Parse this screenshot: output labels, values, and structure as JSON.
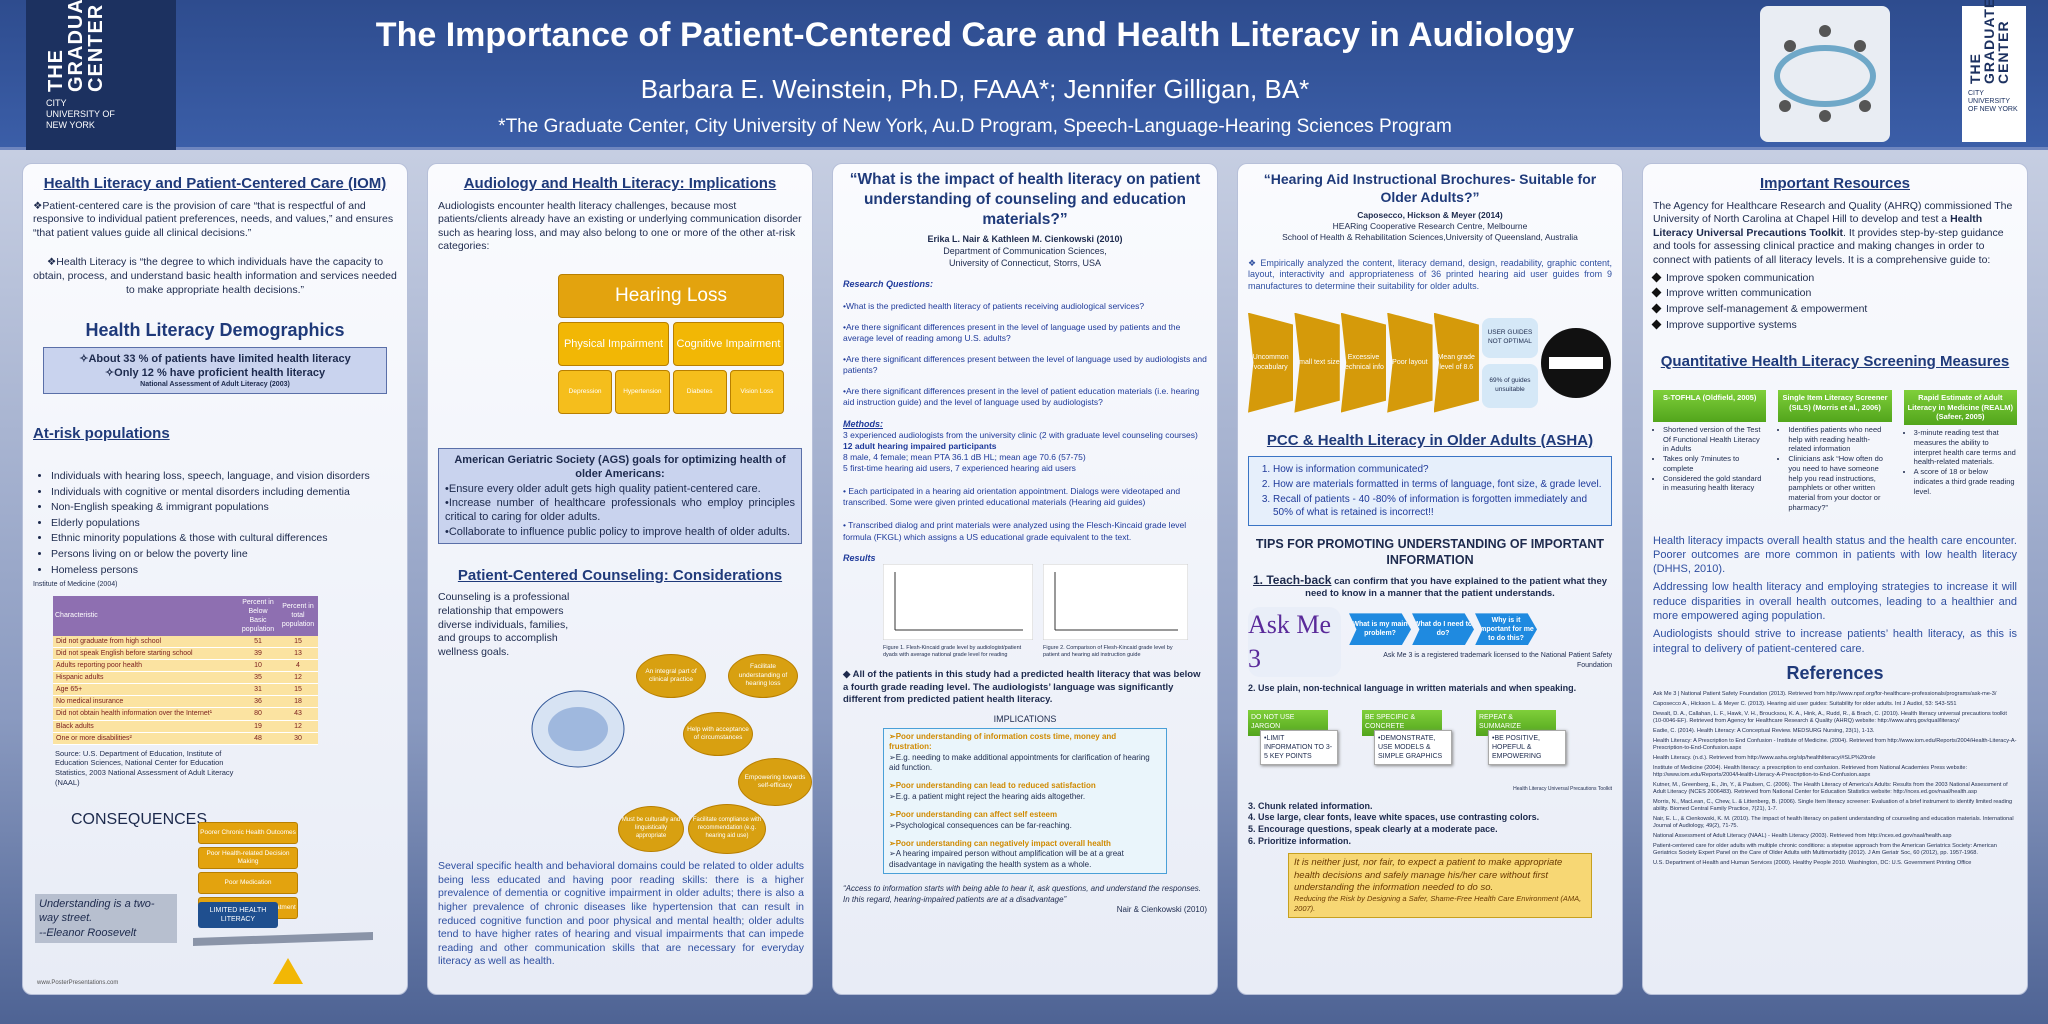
{
  "header": {
    "logo_left": [
      "THE GRADUATE CENTER",
      "CITY UNIVERSITY OF NEW YORK"
    ],
    "logo_right": [
      "THE GRADUATE CENTER",
      "CITY UNIVERSITY OF NEW YORK"
    ],
    "title": "The Importance of Patient-Centered Care and Health Literacy in Audiology",
    "authors": "Barbara E. Weinstein, Ph.D, FAAA*; Jennifer Gilligan, BA*",
    "affiliation": "*The Graduate Center, City University of New York,  Au.D Program, Speech-Language-Hearing Sciences Program"
  },
  "col1": {
    "heading1": "Health Literacy and Patient-Centered Care (IOM)",
    "p1": "❖Patient-centered care is the provision of care “that is respectful of and responsive to individual patient preferences, needs, and values,” and ensures “that patient values guide all clinical decisions.”",
    "p2": "❖Health Literacy is “the degree to which individuals have the capacity to obtain, process, and understand basic health information and services needed to make appropriate health decisions.”",
    "heading2": "Health Literacy Demographics",
    "stats": [
      "✧About 33 % of patients have limited health literacy",
      "✧Only 12 % have proficient health literacy"
    ],
    "stats_source": "National Assessment of Adult Literacy (2003)",
    "heading3": "At-risk populations",
    "at_risk": [
      "Individuals with hearing loss, speech, language, and vision disorders",
      "Individuals with cognitive or mental disorders including dementia",
      "Non-English speaking & immigrant populations",
      "Elderly populations",
      "Ethnic minority populations & those with cultural differences",
      "Persons living on or below the poverty line",
      "Homeless persons"
    ],
    "at_risk_source": "Institute of Medicine (2004)",
    "table": {
      "header": [
        "Characteristic",
        "Percent in Below Basic population",
        "Percent in total population"
      ],
      "rows": [
        [
          "Did not graduate from high school",
          "51",
          "15"
        ],
        [
          "Did not speak English before starting school",
          "39",
          "13"
        ],
        [
          "Adults reporting poor health",
          "10",
          "4"
        ],
        [
          "Hispanic adults",
          "35",
          "12"
        ],
        [
          "Age 65+",
          "31",
          "15"
        ],
        [
          "No medical insurance",
          "36",
          "18"
        ],
        [
          "Did not obtain health information over the Internet¹",
          "80",
          "43"
        ],
        [
          "Black adults",
          "19",
          "12"
        ],
        [
          "One or more disabilities²",
          "48",
          "30"
        ]
      ]
    },
    "table_source": "Source: U.S. Department of Education, Institute of Education Sciences, National Center for Education Statistics, 2003 National Assessment of Adult Literacy (NAAL)",
    "heading4": "CONSEQUENCES",
    "quote": "Understanding is a two-way street.",
    "quote_author": "--Eleanor Roosevelt",
    "lever": "LIMITED HEALTH LITERACY",
    "stack": [
      "Poorer Chronic Health Outcomes",
      "Poor Health-related Decision Making",
      "Poor Medication",
      "Poor Compliance With Treatment"
    ],
    "footer": "www.PosterPresentations.com"
  },
  "col2": {
    "heading1": "Audiology and Health Literacy: Implications",
    "p1": "Audiologists encounter health literacy challenges, because most patients/clients already have an existing or underlying communication disorder such as hearing loss, and may also belong to one or more of the other at-risk categories:",
    "top": "Hearing Loss",
    "mid": [
      "Physical Impairment",
      "Cognitive Impairment"
    ],
    "bottom": [
      "Depression",
      "Hypertension",
      "Diabetes",
      "Vision Loss"
    ],
    "ags_title": "American Geriatric Society (AGS) goals for optimizing health of older Americans:",
    "ags": [
      "•Ensure every older adult gets high quality patient-centered care.",
      "•Increase number of healthcare professionals who employ principles critical to caring for older adults.",
      "•Collaborate to influence public policy to improve health of older adults."
    ],
    "heading2": "Patient-Centered Counseling: Considerations",
    "counseling": "Counseling is a professional relationship that empowers diverse individuals, families, and groups to accomplish wellness goals.",
    "circles": [
      "An integral part of clinical practice",
      "Facilitate understanding of hearing loss",
      "Help with acceptance of circumstances",
      "Empowering towards self-efficacy",
      "Facilitate compliance with recommendation (e.g. hearing aid use)",
      "Must be culturally and linguistically appropriate"
    ],
    "p2": "Several specific health and behavioral domains could be related to older adults being less educated and having poor reading skills: there is a higher prevalence of dementia or cognitive impairment in older adults; there is also a higher prevalence of chronic diseases like hypertension that can result in reduced cognitive function and poor physical and mental health; older adults tend to have higher rates of hearing and visual impairments that can impede reading and other communication skills that are necessary for everyday literacy as well as health."
  },
  "col3": {
    "title": "“What is the impact of health literacy on patient understanding of counseling and education materials?”",
    "authors": "Erika L. Nair & Kathleen M. Cienkowski (2010)",
    "dept": "Department of Communication Sciences,",
    "univ": "University of Connecticut, Storrs, USA",
    "rq_label": "Research Questions:",
    "rq": [
      "•What is the predicted health literacy of patients receiving audiological services?",
      "•Are there significant differences present in the level of language used by patients and the average level of reading among U.S. adults?",
      "•Are there significant differences present between the level of language used by audiologists and patients?",
      "•Are there significant differences present in the level of patient education materials (i.e. hearing aid instruction guide) and the level of language used by audiologists?"
    ],
    "methods_label": "Methods:",
    "methods": [
      "3 experienced audiologists from the university clinic (2 with graduate level counseling courses)",
      "12 adult hearing impaired participants",
      "8 male, 4 female; mean PTA 36.1 dB HL; mean age 70.6 (57-75)",
      "5 first-time hearing aid users, 7 experienced hearing aid users"
    ],
    "m2": "• Each participated in a hearing aid orientation appointment. Dialogs were videotaped and transcribed. Some were given printed educational materials (Hearing aid guides)",
    "m3": "• Transcribed dialog and print materials were analyzed using the Flesch-Kincaid grade level formula (FKGL) which assigns a US educational grade equivalent to the text.",
    "results_label": "Results",
    "fig1": "Figure 1. Flesh-Kincaid grade level by audiologist/patient dyads with average national grade level for reading",
    "fig2": "Figure 2. Comparison of Flesh-Kincaid grade level by patient and hearing aid instruction guide",
    "result": "◆ All of the patients in this study had a predicted health literacy that was below a fourth grade reading level. The audiologists’ language was significantly different from predicted patient health literacy.",
    "impl_label": "IMPLICATIONS",
    "impl": [
      [
        "➢Poor understanding of information costs time, money and frustration:",
        "➢E.g. needing to make additional appointments for clarification of hearing aid function."
      ],
      [
        "➢Poor understanding can lead to reduced satisfaction",
        "➢E.g. a patient might reject the hearing aids altogether."
      ],
      [
        "➢Poor understanding can affect self esteem",
        "➢Psychological consequences can be far-reaching."
      ],
      [
        "➢Poor understanding can negatively impact overall health",
        "➢A hearing impaired person without amplification will be at a great disadvantage in navigating the health system as a whole."
      ]
    ],
    "quote": "“Access to information starts with being able to hear it, ask questions, and understand the responses. In this regard, hearing-impaired patients are at a disadvantage”",
    "cite": "Nair & Cienkowski  (2010)"
  },
  "col4": {
    "title": "“Hearing Aid Instructional Brochures- Suitable for Older Adults?”",
    "authors": "Caposecco, Hickson & Meyer (2014)",
    "aff1": "HEARing Cooperative Research Centre, Melbourne",
    "aff2": "School of Health & Rehabilitation Sciences,University of Queensland, Australia",
    "p1": "❖  Empirically analyzed the content, literacy demand, design, readability, graphic content, layout, interactivity and appropriateness of 36 printed hearing aid user guides from 9 manufactures to determine their suitability for older adults.",
    "chevrons": [
      "Uncommon vocabulary",
      "Small text size",
      "Excessive technical info",
      "Poor layout",
      "Mean grade level of 8.6"
    ],
    "outcomes": [
      "USER GUIDES NOT OPTIMAL",
      "69% of guides unsuitable"
    ],
    "heading2": "PCC  & Health Literacy in Older Adults (ASHA)",
    "asha": [
      "How is information communicated?",
      "How are materials formatted in terms of language, font size, & grade level.",
      "Recall of patients - 40 -80% of information is forgotten immediately and 50% of what is retained is incorrect!!"
    ],
    "tips_title": "TIPS FOR PROMOTING UNDERSTANDING OF IMPORTANT INFORMATION",
    "tip1_lead": "1. Teach-back",
    "tip1": " can confirm that you have explained to the patient what they need to know in a manner that the patient understands.",
    "askme": "Ask Me 3",
    "askme_q": [
      "What is my main problem?",
      "What do I need to do?",
      "Why is it important for me to do this?"
    ],
    "askme_tm": "Ask Me 3 is a registered trademark licensed to the National Patient Safety Foundation",
    "tip2": "2. Use plain, non-technical language in written materials and when speaking.",
    "steps": [
      [
        "DO NOT USE JARGON",
        "•LIMIT INFORMATION TO 3-5 KEY POINTS"
      ],
      [
        "BE SPECIFIC & CONCRETE",
        "•DEMONSTRATE, USE MODELS & SIMPLE GRAPHICS"
      ],
      [
        "REPEAT & SUMMARIZE",
        "•BE POSITIVE, HOPEFUL & EMPOWERING"
      ]
    ],
    "steps_src": "Health Literacy Universal Precautions Toolkit",
    "tips_more": [
      "3. Chunk related information.",
      "4. Use large, clear fonts,  leave white spaces, use contrasting colors.",
      "5. Encourage questions, speak clearly at a moderate pace.",
      "6. Prioritize information."
    ],
    "box": "It is neither just, nor fair, to expect a patient to make appropriate health decisions and safely manage his/her care without first understanding the information needed to do so.",
    "box_src": "Reducing the Risk by Designing a Safer, Shame-Free Health Care Environment (AMA, 2007)."
  },
  "col5": {
    "heading1": "Important Resources",
    "p1_a": "The Agency for Healthcare Research and Quality (AHRQ) commissioned The University of North Carolina at Chapel Hill to develop and test a ",
    "p1_b": "Health Literacy Universal Precautions Toolkit",
    "p1_c": ". It provides step-by-step guidance and tools for assessing clinical practice and making changes in order to connect with patients of all literacy levels. It is a comprehensive guide to:",
    "bullets": [
      "Improve spoken communication",
      "Improve written communication",
      "Improve self-management & empowerment",
      "Improve supportive systems"
    ],
    "heading2": "Quantitative Health Literacy Screening Measures",
    "measures": [
      {
        "title": "S-TOFHLA (Oldfield, 2005)",
        "items": [
          "Shortened version of the Test Of Functional Health Literacy in Adults",
          "Takes only 7minutes to complete",
          "Considered the gold standard in measuring health literacy"
        ]
      },
      {
        "title": "Single Item Literacy Screener (SILS) (Morris et al., 2006)",
        "items": [
          "Identifies patients who need help with reading health-related information",
          "Clinicians ask “How often do you need to have someone help you read instructions, pamphlets or other written material from your doctor or pharmacy?”"
        ]
      },
      {
        "title": "Rapid Estimate of Adult Literacy in Medicine (REALM) (Safeer, 2005)",
        "items": [
          "3-minute reading test that measures the ability to interpret health care terms and health-related materials.",
          "A score of 18 or below indicates a third grade reading level."
        ]
      }
    ],
    "p2": "Health literacy impacts overall health status and the health care encounter. Poorer outcomes are more common in patients with low health literacy (DHHS, 2010).",
    "p3": "Addressing low health literacy and employing strategies to increase it will reduce disparities in overall health outcomes, leading to a healthier and more empowered aging population.",
    "p4": "Audiologists should strive to increase patients’ health literacy, as this is integral to delivery of patient-centered care.",
    "heading3": "References",
    "refs": [
      "Ask Me 3 | National Patient Safety Foundation (2013). Retrieved from http://www.npsf.org/for-healthcare-professionals/programs/ask-me-3/",
      "Caposecco A., Hickson L. & Meyer C. (2013). Hearing aid user guides: Suitability for older adults. Int J Audiol, 53: S43-S51",
      "Dewalt, D. A., Callahan, L. F., Hawk, V. H., Broucksou, K. A., Hink, A., Rudd, R., & Brach, C. (2010). Health literacy universal precautions toolkit (10-0046-EF). Retrieved from Agency for Healthcare Research & Quality (AHRQ) website: http://www.ahrq.gov/qual/literacy/",
      "Eadie, C. (2014). Health Literacy: A Conceptual Review. MEDSURG Nursing, 23(1), 1-13.",
      "Health Literacy: A Prescription to End Confusion - Institute of Medicine. (2004). Retrieved from http://www.iom.edu/Reports/2004/Health-Literacy-A-Prescription-to-End-Confusion.aspx",
      "Health Literacy. (n.d.). Retrieved from http://www.asha.org/slp/healthliteracy/#SLP%20role",
      "Institute of Medicine (2004). Health literacy: a prescription to end confusion. Retrieved from National Academies Press website: http://www.iom.edu/Reports/2004/Health-Literacy-A-Prescription-to-End-Confusion.aspx",
      "Kutner, M., Greenberg, E., Jin, Y., & Paulsen, C. (2006). The Health Literacy of America’s Adults: Results from the 2003 National Assessment of Adult Literacy (NCES 2006483). Retrieved from National Center for Education Statistics website: http://nces.ed.gov/naal/health.asp",
      "Morris, N., MacLean, C., Chew, L. & Littenberg, B. (2006). Single Item literacy screener: Evaluation of a brief instrument to identify limited reading ability. Biomed Central Family Practice, 7(21), 1-7.",
      "Nair, E. L., & Cienkowski, K. M. (2010). The impact of health literacy on patient understanding of counseling and education materials. International Journal of Audiology, 49(2), 71-75.",
      "National Assessment of Adult Literacy (NAAL) - Health Literacy (2003). Retrieved from http://nces.ed.gov/naal/health.asp",
      "Patient-centered care for older adults with multiple chronic conditions: a stepwise approach from the American Geriatrics Society: American Geriatrics Society Expert Panel on the Care of Older Adults with Multimorbidity (2012). J Am Geriatr Soc, 60 (2012), pp. 1957-1968.",
      "U.S. Department of Health and Human Services (2000). Healthy People 2010. Washington, DC: U.S. Government Printing Office"
    ]
  }
}
